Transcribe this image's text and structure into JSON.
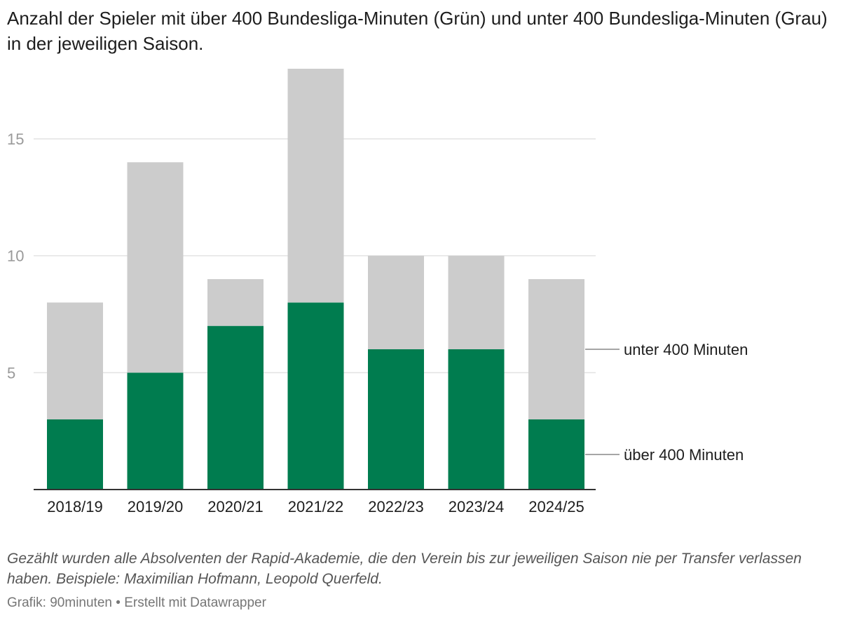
{
  "chart_data": {
    "type": "bar",
    "stacked": true,
    "title": "Anzahl der Spieler mit über 400 Bundesliga-Minuten (Grün) und unter 400 Bundesliga-Minuten (Grau) in der jeweiligen Saison.",
    "categories": [
      "2018/19",
      "2019/20",
      "2020/21",
      "2021/22",
      "2022/23",
      "2023/24",
      "2024/25"
    ],
    "series": [
      {
        "name": "über 400 Minuten",
        "color": "#007c4f",
        "values": [
          3,
          5,
          7,
          8,
          6,
          6,
          3
        ]
      },
      {
        "name": "unter 400 Minuten",
        "color": "#cccccc",
        "values": [
          5,
          9,
          2,
          10,
          4,
          4,
          6
        ]
      }
    ],
    "yticks": [
      5,
      10,
      15
    ],
    "ylim": [
      0,
      18
    ],
    "grid": true,
    "legend": "right, labels at series"
  },
  "notes": "Gezählt wurden alle Absolventen der Rapid-Akademie, die den Verein bis zur jeweiligen Saison nie per Transfer verlassen haben. Beispiele: Maximilian Hofmann, Leopold Querfeld.",
  "footer": {
    "source": "Grafik: 90minuten",
    "separator": " • ",
    "tool": "Erstellt mit Datawrapper"
  }
}
